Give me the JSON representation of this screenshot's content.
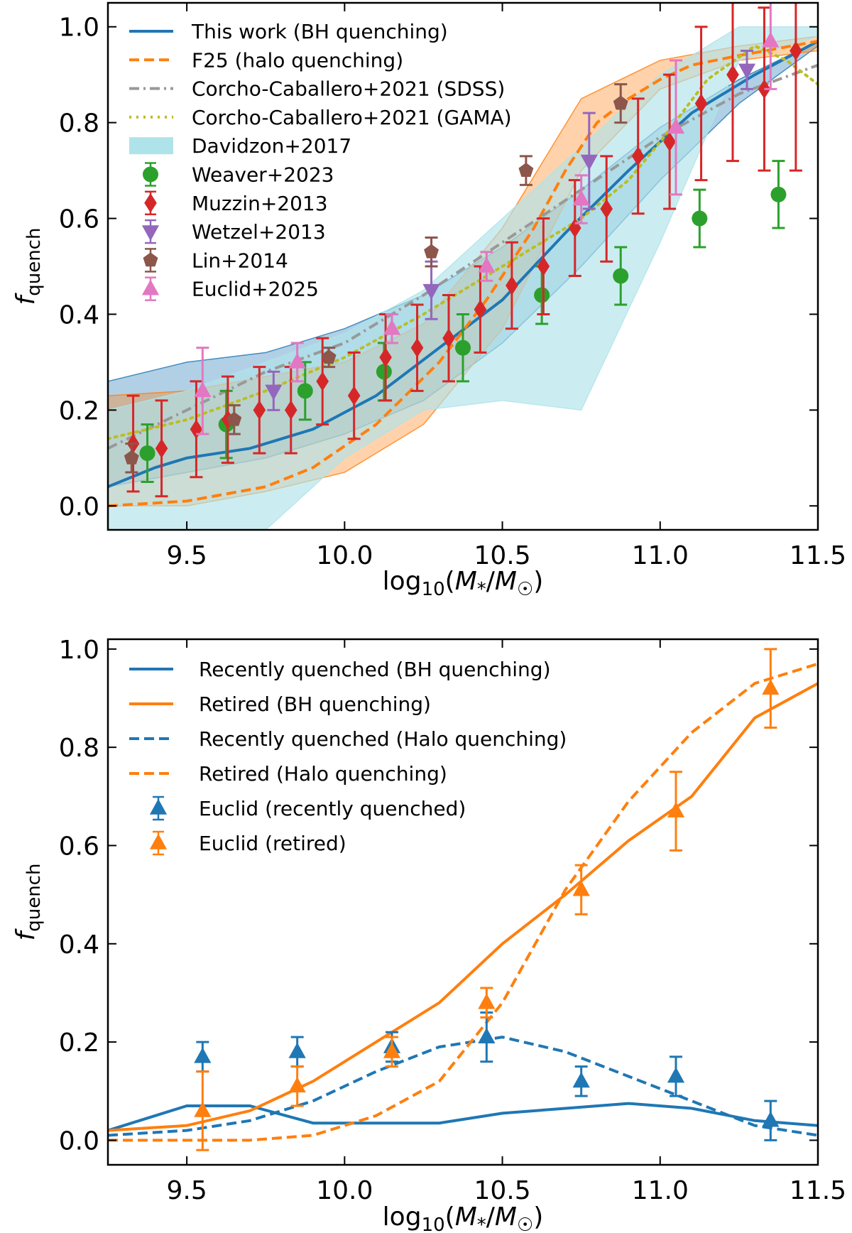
{
  "chart_data": [
    {
      "type": "line",
      "xlabel": "log10(M*/M☉)",
      "ylabel": "f_quench",
      "xlim": [
        9.25,
        11.5
      ],
      "ylim": [
        -0.05,
        1.05
      ],
      "xticks": [
        "9.5",
        "10.0",
        "10.5",
        "11.0",
        "11.5"
      ],
      "yticks": [
        "0.0",
        "0.2",
        "0.4",
        "0.6",
        "0.8",
        "1.0"
      ],
      "legend_position": "top-left",
      "bands": [
        {
          "name": "This work (BH quenching) range",
          "color": "#1f77b4",
          "x": [
            9.25,
            9.5,
            9.75,
            10.0,
            10.25,
            10.5,
            10.75,
            11.0,
            11.25,
            11.5
          ],
          "upper": [
            0.26,
            0.3,
            0.32,
            0.37,
            0.44,
            0.54,
            0.66,
            0.79,
            0.89,
            0.97
          ],
          "lower": [
            0.04,
            0.07,
            0.1,
            0.15,
            0.22,
            0.34,
            0.5,
            0.68,
            0.84,
            0.96
          ]
        },
        {
          "name": "F25 (halo quenching) range",
          "color": "#ff7f0e",
          "x": [
            9.25,
            9.5,
            9.75,
            10.0,
            10.25,
            10.5,
            10.75,
            11.0,
            11.25,
            11.5
          ],
          "upper": [
            0.23,
            0.24,
            0.27,
            0.3,
            0.38,
            0.58,
            0.85,
            0.93,
            0.96,
            0.98
          ],
          "lower": [
            0.0,
            0.0,
            0.03,
            0.07,
            0.17,
            0.37,
            0.7,
            0.87,
            0.93,
            0.95
          ]
        },
        {
          "name": "Davidzon+2017",
          "color": "#afe3ea",
          "x": [
            9.25,
            9.5,
            9.75,
            10.0,
            10.25,
            10.5,
            10.75,
            11.0,
            11.25,
            11.5
          ],
          "upper": [
            0.2,
            0.24,
            0.3,
            0.36,
            0.45,
            0.6,
            0.75,
            0.9,
            1.0,
            1.0
          ],
          "lower": [
            -0.05,
            -0.05,
            -0.05,
            0.1,
            0.2,
            0.22,
            0.2,
            0.55,
            0.93,
            0.98
          ]
        }
      ],
      "series": [
        {
          "name": "This work (BH quenching)",
          "color": "#1f77b4",
          "style": "solid",
          "x": [
            9.25,
            9.4,
            9.5,
            9.7,
            9.9,
            10.1,
            10.3,
            10.5,
            10.7,
            10.9,
            11.0,
            11.1,
            11.3,
            11.5
          ],
          "y": [
            0.04,
            0.08,
            0.1,
            0.12,
            0.16,
            0.23,
            0.33,
            0.43,
            0.57,
            0.7,
            0.76,
            0.82,
            0.9,
            0.97
          ]
        },
        {
          "name": "F25 (halo quenching)",
          "color": "#ff7f0e",
          "style": "dashed",
          "x": [
            9.25,
            9.5,
            9.75,
            9.9,
            10.1,
            10.3,
            10.45,
            10.6,
            10.7,
            10.8,
            10.9,
            11.0,
            11.1,
            11.25,
            11.5
          ],
          "y": [
            0.0,
            0.01,
            0.04,
            0.08,
            0.17,
            0.3,
            0.43,
            0.58,
            0.7,
            0.8,
            0.85,
            0.89,
            0.92,
            0.94,
            0.97
          ]
        },
        {
          "name": "Corcho-Caballero+2021 (SDSS)",
          "color": "#999999",
          "style": "dashdot",
          "x": [
            9.25,
            9.5,
            9.75,
            10.0,
            10.25,
            10.5,
            10.75,
            11.0,
            11.25,
            11.5
          ],
          "y": [
            0.12,
            0.2,
            0.28,
            0.34,
            0.44,
            0.55,
            0.66,
            0.77,
            0.86,
            0.92
          ]
        },
        {
          "name": "Corcho-Caballero+2021 (GAMA)",
          "color": "#bcbd22",
          "style": "dotted",
          "x": [
            9.25,
            9.5,
            9.75,
            10.0,
            10.25,
            10.5,
            10.75,
            10.9,
            11.0,
            11.15,
            11.3,
            11.4,
            11.5
          ],
          "y": [
            0.14,
            0.18,
            0.24,
            0.31,
            0.4,
            0.5,
            0.6,
            0.68,
            0.76,
            0.89,
            0.96,
            0.93,
            0.88
          ]
        }
      ],
      "points": [
        {
          "name": "Weaver+2023",
          "color": "#2ca02c",
          "marker": "circle",
          "x": [
            9.375,
            9.625,
            9.875,
            10.125,
            10.375,
            10.625,
            10.875,
            11.125,
            11.375
          ],
          "y": [
            0.11,
            0.17,
            0.24,
            0.28,
            0.33,
            0.44,
            0.48,
            0.6,
            0.65
          ],
          "err": [
            0.06,
            0.07,
            0.06,
            0.06,
            0.07,
            0.06,
            0.06,
            0.06,
            0.07
          ]
        },
        {
          "name": "Muzzin+2013",
          "color": "#d62728",
          "marker": "diamond",
          "x": [
            9.33,
            9.42,
            9.53,
            9.63,
            9.73,
            9.83,
            9.93,
            10.03,
            10.13,
            10.23,
            10.33,
            10.43,
            10.53,
            10.63,
            10.73,
            10.83,
            10.93,
            11.03,
            11.13,
            11.23,
            11.33,
            11.43
          ],
          "y": [
            0.13,
            0.12,
            0.16,
            0.18,
            0.2,
            0.2,
            0.26,
            0.23,
            0.31,
            0.33,
            0.35,
            0.41,
            0.46,
            0.5,
            0.58,
            0.62,
            0.73,
            0.76,
            0.84,
            0.9,
            0.87,
            0.95
          ],
          "err": [
            0.1,
            0.1,
            0.1,
            0.09,
            0.09,
            0.09,
            0.09,
            0.09,
            0.09,
            0.09,
            0.09,
            0.09,
            0.09,
            0.1,
            0.1,
            0.11,
            0.12,
            0.14,
            0.16,
            0.18,
            0.17,
            0.25
          ]
        },
        {
          "name": "Wetzel+2013",
          "color": "#9467bd",
          "marker": "triangle-down",
          "x": [
            9.775,
            10.275,
            10.775,
            11.275
          ],
          "y": [
            0.24,
            0.45,
            0.72,
            0.91
          ],
          "err": [
            0.04,
            0.06,
            0.1,
            0.04
          ]
        },
        {
          "name": "Lin+2014",
          "color": "#8c564b",
          "marker": "pentagon",
          "x": [
            9.325,
            9.65,
            9.95,
            10.275,
            10.575,
            10.875
          ],
          "y": [
            0.1,
            0.18,
            0.31,
            0.53,
            0.7,
            0.84
          ],
          "err": [
            0.03,
            0.03,
            0.02,
            0.03,
            0.03,
            0.04
          ]
        },
        {
          "name": "Euclid+2025",
          "color": "#e377c2",
          "marker": "triangle-up",
          "x": [
            9.55,
            9.85,
            10.15,
            10.45,
            10.75,
            11.05,
            11.35
          ],
          "y": [
            0.24,
            0.3,
            0.37,
            0.5,
            0.64,
            0.79,
            0.97
          ],
          "err": [
            0.09,
            0.04,
            0.03,
            0.03,
            0.05,
            0.14,
            0.1
          ]
        }
      ],
      "legend": [
        {
          "label": "This work (BH quenching)",
          "kind": "line",
          "color": "#1f77b4",
          "style": "solid"
        },
        {
          "label": "F25 (halo quenching)",
          "kind": "line",
          "color": "#ff7f0e",
          "style": "dashed"
        },
        {
          "label": "Corcho-Caballero+2021 (SDSS)",
          "kind": "line",
          "color": "#999999",
          "style": "dashdot"
        },
        {
          "label": "Corcho-Caballero+2021 (GAMA)",
          "kind": "line",
          "color": "#bcbd22",
          "style": "dotted"
        },
        {
          "label": "Davidzon+2017",
          "kind": "patch",
          "color": "#afe3ea"
        },
        {
          "label": "Weaver+2023",
          "kind": "marker",
          "color": "#2ca02c",
          "marker": "circle"
        },
        {
          "label": "Muzzin+2013",
          "kind": "marker",
          "color": "#d62728",
          "marker": "diamond"
        },
        {
          "label": "Wetzel+2013",
          "kind": "marker",
          "color": "#9467bd",
          "marker": "triangle-down"
        },
        {
          "label": "Lin+2014",
          "kind": "marker",
          "color": "#8c564b",
          "marker": "pentagon"
        },
        {
          "label": "Euclid+2025",
          "kind": "marker",
          "color": "#e377c2",
          "marker": "triangle-up"
        }
      ]
    },
    {
      "type": "line",
      "xlabel": "log10(M*/M☉)",
      "ylabel": "f_quench",
      "xlim": [
        9.25,
        11.5
      ],
      "ylim": [
        -0.05,
        1.02
      ],
      "xticks": [
        "9.5",
        "10.0",
        "10.5",
        "11.0",
        "11.5"
      ],
      "yticks": [
        "0.0",
        "0.2",
        "0.4",
        "0.6",
        "0.8",
        "1.0"
      ],
      "legend_position": "top-left",
      "bands": [],
      "series": [
        {
          "name": "Recently quenched (BH quenching)",
          "color": "#1f77b4",
          "style": "solid",
          "x": [
            9.25,
            9.3,
            9.5,
            9.7,
            9.9,
            10.1,
            10.3,
            10.5,
            10.7,
            10.9,
            11.1,
            11.3,
            11.5
          ],
          "y": [
            0.02,
            0.03,
            0.07,
            0.07,
            0.035,
            0.035,
            0.035,
            0.055,
            0.065,
            0.075,
            0.065,
            0.04,
            0.03
          ]
        },
        {
          "name": "Retired (BH quenching)",
          "color": "#ff7f0e",
          "style": "solid",
          "x": [
            9.25,
            9.5,
            9.7,
            9.9,
            10.1,
            10.3,
            10.5,
            10.7,
            10.9,
            11.1,
            11.3,
            11.5
          ],
          "y": [
            0.02,
            0.03,
            0.06,
            0.12,
            0.2,
            0.28,
            0.4,
            0.5,
            0.61,
            0.7,
            0.86,
            0.93
          ]
        },
        {
          "name": "Recently quenched (Halo quenching)",
          "color": "#1f77b4",
          "style": "dashed",
          "x": [
            9.25,
            9.5,
            9.7,
            9.9,
            10.1,
            10.3,
            10.5,
            10.7,
            10.9,
            11.1,
            11.3,
            11.5
          ],
          "y": [
            0.01,
            0.02,
            0.04,
            0.08,
            0.14,
            0.19,
            0.21,
            0.18,
            0.13,
            0.08,
            0.03,
            0.01
          ]
        },
        {
          "name": "Retired (Halo quenching)",
          "color": "#ff7f0e",
          "style": "dashed",
          "x": [
            9.25,
            9.5,
            9.7,
            9.9,
            10.1,
            10.3,
            10.5,
            10.7,
            10.9,
            11.1,
            11.3,
            11.5
          ],
          "y": [
            0.0,
            0.0,
            0.0,
            0.01,
            0.05,
            0.12,
            0.28,
            0.51,
            0.69,
            0.83,
            0.93,
            0.97
          ]
        }
      ],
      "points": [
        {
          "name": "Euclid (recently quenched)",
          "color": "#1f77b4",
          "marker": "triangle-up",
          "x": [
            9.55,
            9.85,
            10.15,
            10.45,
            10.75,
            11.05,
            11.35
          ],
          "y": [
            0.17,
            0.18,
            0.19,
            0.21,
            0.12,
            0.13,
            0.04
          ],
          "err": [
            0.03,
            0.03,
            0.03,
            0.05,
            0.03,
            0.04,
            0.04
          ]
        },
        {
          "name": "Euclid (retired)",
          "color": "#ff7f0e",
          "marker": "triangle-up",
          "x": [
            9.55,
            9.85,
            10.15,
            10.45,
            10.75,
            11.05,
            11.35
          ],
          "y": [
            0.06,
            0.11,
            0.18,
            0.28,
            0.51,
            0.67,
            0.92
          ],
          "err": [
            0.08,
            0.04,
            0.03,
            0.03,
            0.05,
            0.08,
            0.08
          ]
        }
      ],
      "legend": [
        {
          "label": "Recently quenched (BH quenching)",
          "kind": "line",
          "color": "#1f77b4",
          "style": "solid"
        },
        {
          "label": "Retired (BH quenching)",
          "kind": "line",
          "color": "#ff7f0e",
          "style": "solid"
        },
        {
          "label": "Recently quenched (Halo quenching)",
          "kind": "line",
          "color": "#1f77b4",
          "style": "dashed"
        },
        {
          "label": "Retired (Halo quenching)",
          "kind": "line",
          "color": "#ff7f0e",
          "style": "dashed"
        },
        {
          "label": "Euclid (recently quenched)",
          "kind": "marker",
          "color": "#1f77b4",
          "marker": "triangle-up"
        },
        {
          "label": "Euclid (retired)",
          "kind": "marker",
          "color": "#ff7f0e",
          "marker": "triangle-up"
        }
      ]
    }
  ]
}
